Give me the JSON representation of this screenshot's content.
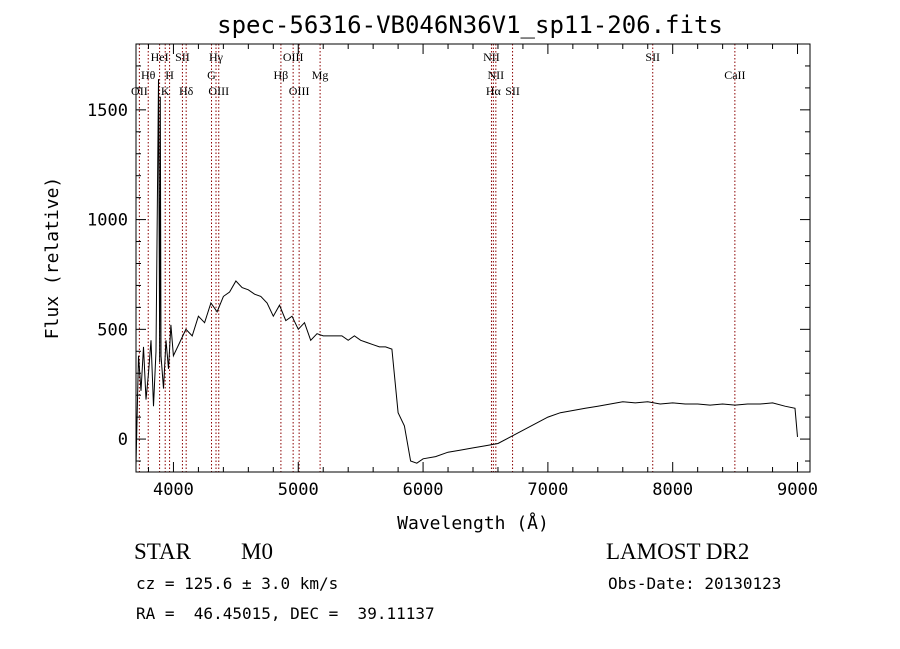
{
  "chart_data": {
    "type": "line",
    "title": "spec-56316-VB046N36V1_sp11-206.fits",
    "xlabel": "Wavelength (Å)",
    "ylabel": "Flux (relative)",
    "xlim": [
      3700,
      9100
    ],
    "ylim": [
      -150,
      1800
    ],
    "x_ticks": [
      4000,
      5000,
      6000,
      7000,
      8000,
      9000
    ],
    "y_ticks": [
      0,
      500,
      1000,
      1500
    ],
    "grid": false,
    "line_color": "#000000",
    "marker_color": "#8b0000",
    "series": [
      {
        "x": [
          3700,
          3720,
          3740,
          3760,
          3780,
          3800,
          3820,
          3840,
          3860,
          3880,
          3890,
          3895,
          3900,
          3920,
          3940,
          3960,
          3980,
          4000,
          4050,
          4100,
          4150,
          4200,
          4250,
          4300,
          4350,
          4400,
          4450,
          4500,
          4550,
          4600,
          4650,
          4700,
          4750,
          4800,
          4850,
          4900,
          4950,
          5000,
          5050,
          5100,
          5150,
          5200,
          5250,
          5300,
          5350,
          5400,
          5450,
          5500,
          5550,
          5600,
          5650,
          5700,
          5750,
          5800,
          5850,
          5900,
          5950,
          6000,
          6100,
          6200,
          6300,
          6400,
          6500,
          6600,
          6700,
          6800,
          6900,
          7000,
          7100,
          7200,
          7300,
          7400,
          7500,
          7600,
          7700,
          7800,
          7900,
          8000,
          8100,
          8200,
          8300,
          8400,
          8500,
          8600,
          8700,
          8800,
          8900,
          8980,
          9000
        ],
        "y": [
          -120,
          380,
          220,
          420,
          180,
          300,
          450,
          150,
          400,
          1640,
          350,
          1560,
          380,
          230,
          450,
          320,
          520,
          380,
          440,
          500,
          470,
          560,
          530,
          620,
          580,
          650,
          670,
          720,
          690,
          680,
          660,
          650,
          620,
          560,
          610,
          540,
          560,
          500,
          530,
          450,
          480,
          470,
          470,
          470,
          470,
          450,
          470,
          450,
          440,
          430,
          420,
          420,
          410,
          120,
          60,
          -100,
          -110,
          -90,
          -80,
          -60,
          -50,
          -40,
          -30,
          -20,
          10,
          40,
          70,
          100,
          120,
          130,
          140,
          150,
          160,
          170,
          165,
          170,
          160,
          165,
          160,
          160,
          155,
          160,
          155,
          160,
          160,
          165,
          150,
          140,
          10
        ]
      }
    ],
    "lines": [
      {
        "name": "OII",
        "x": 3727,
        "row": 3
      },
      {
        "name": "Hθ",
        "x": 3798,
        "row": 2
      },
      {
        "name": "HeI",
        "x": 3889,
        "row": 1
      },
      {
        "name": "K",
        "x": 3934,
        "row": 3
      },
      {
        "name": "H",
        "x": 3969,
        "row": 2
      },
      {
        "name": "SII",
        "x": 4072,
        "row": 1
      },
      {
        "name": "Hδ",
        "x": 4102,
        "row": 3
      },
      {
        "name": "Hγ",
        "x": 4341,
        "row": 1
      },
      {
        "name": "G",
        "x": 4305,
        "row": 2
      },
      {
        "name": "OIII",
        "x": 4363,
        "row": 3
      },
      {
        "name": "Hβ",
        "x": 4861,
        "row": 2
      },
      {
        "name": "OIII",
        "x": 4959,
        "row": 1
      },
      {
        "name": "OIII",
        "x": 5007,
        "row": 3
      },
      {
        "name": "Mg",
        "x": 5175,
        "row": 2
      },
      {
        "name": "NII",
        "x": 6548,
        "row": 1
      },
      {
        "name": "NII",
        "x": 6583,
        "row": 2
      },
      {
        "name": "Hα",
        "x": 6563,
        "row": 3
      },
      {
        "name": "SII",
        "x": 6717,
        "row": 3
      },
      {
        "name": "SII",
        "x": 7840,
        "row": 1
      },
      {
        "name": "CaII",
        "x": 8498,
        "row": 2
      }
    ]
  },
  "info": {
    "class_label": "STAR",
    "subclass": "M0",
    "survey": "LAMOST DR2",
    "cz": "cz = 125.6 ± 3.0 km/s",
    "obs_date": "Obs-Date: 20130123",
    "radec": "RA =  46.45015, DEC =  39.11137"
  }
}
